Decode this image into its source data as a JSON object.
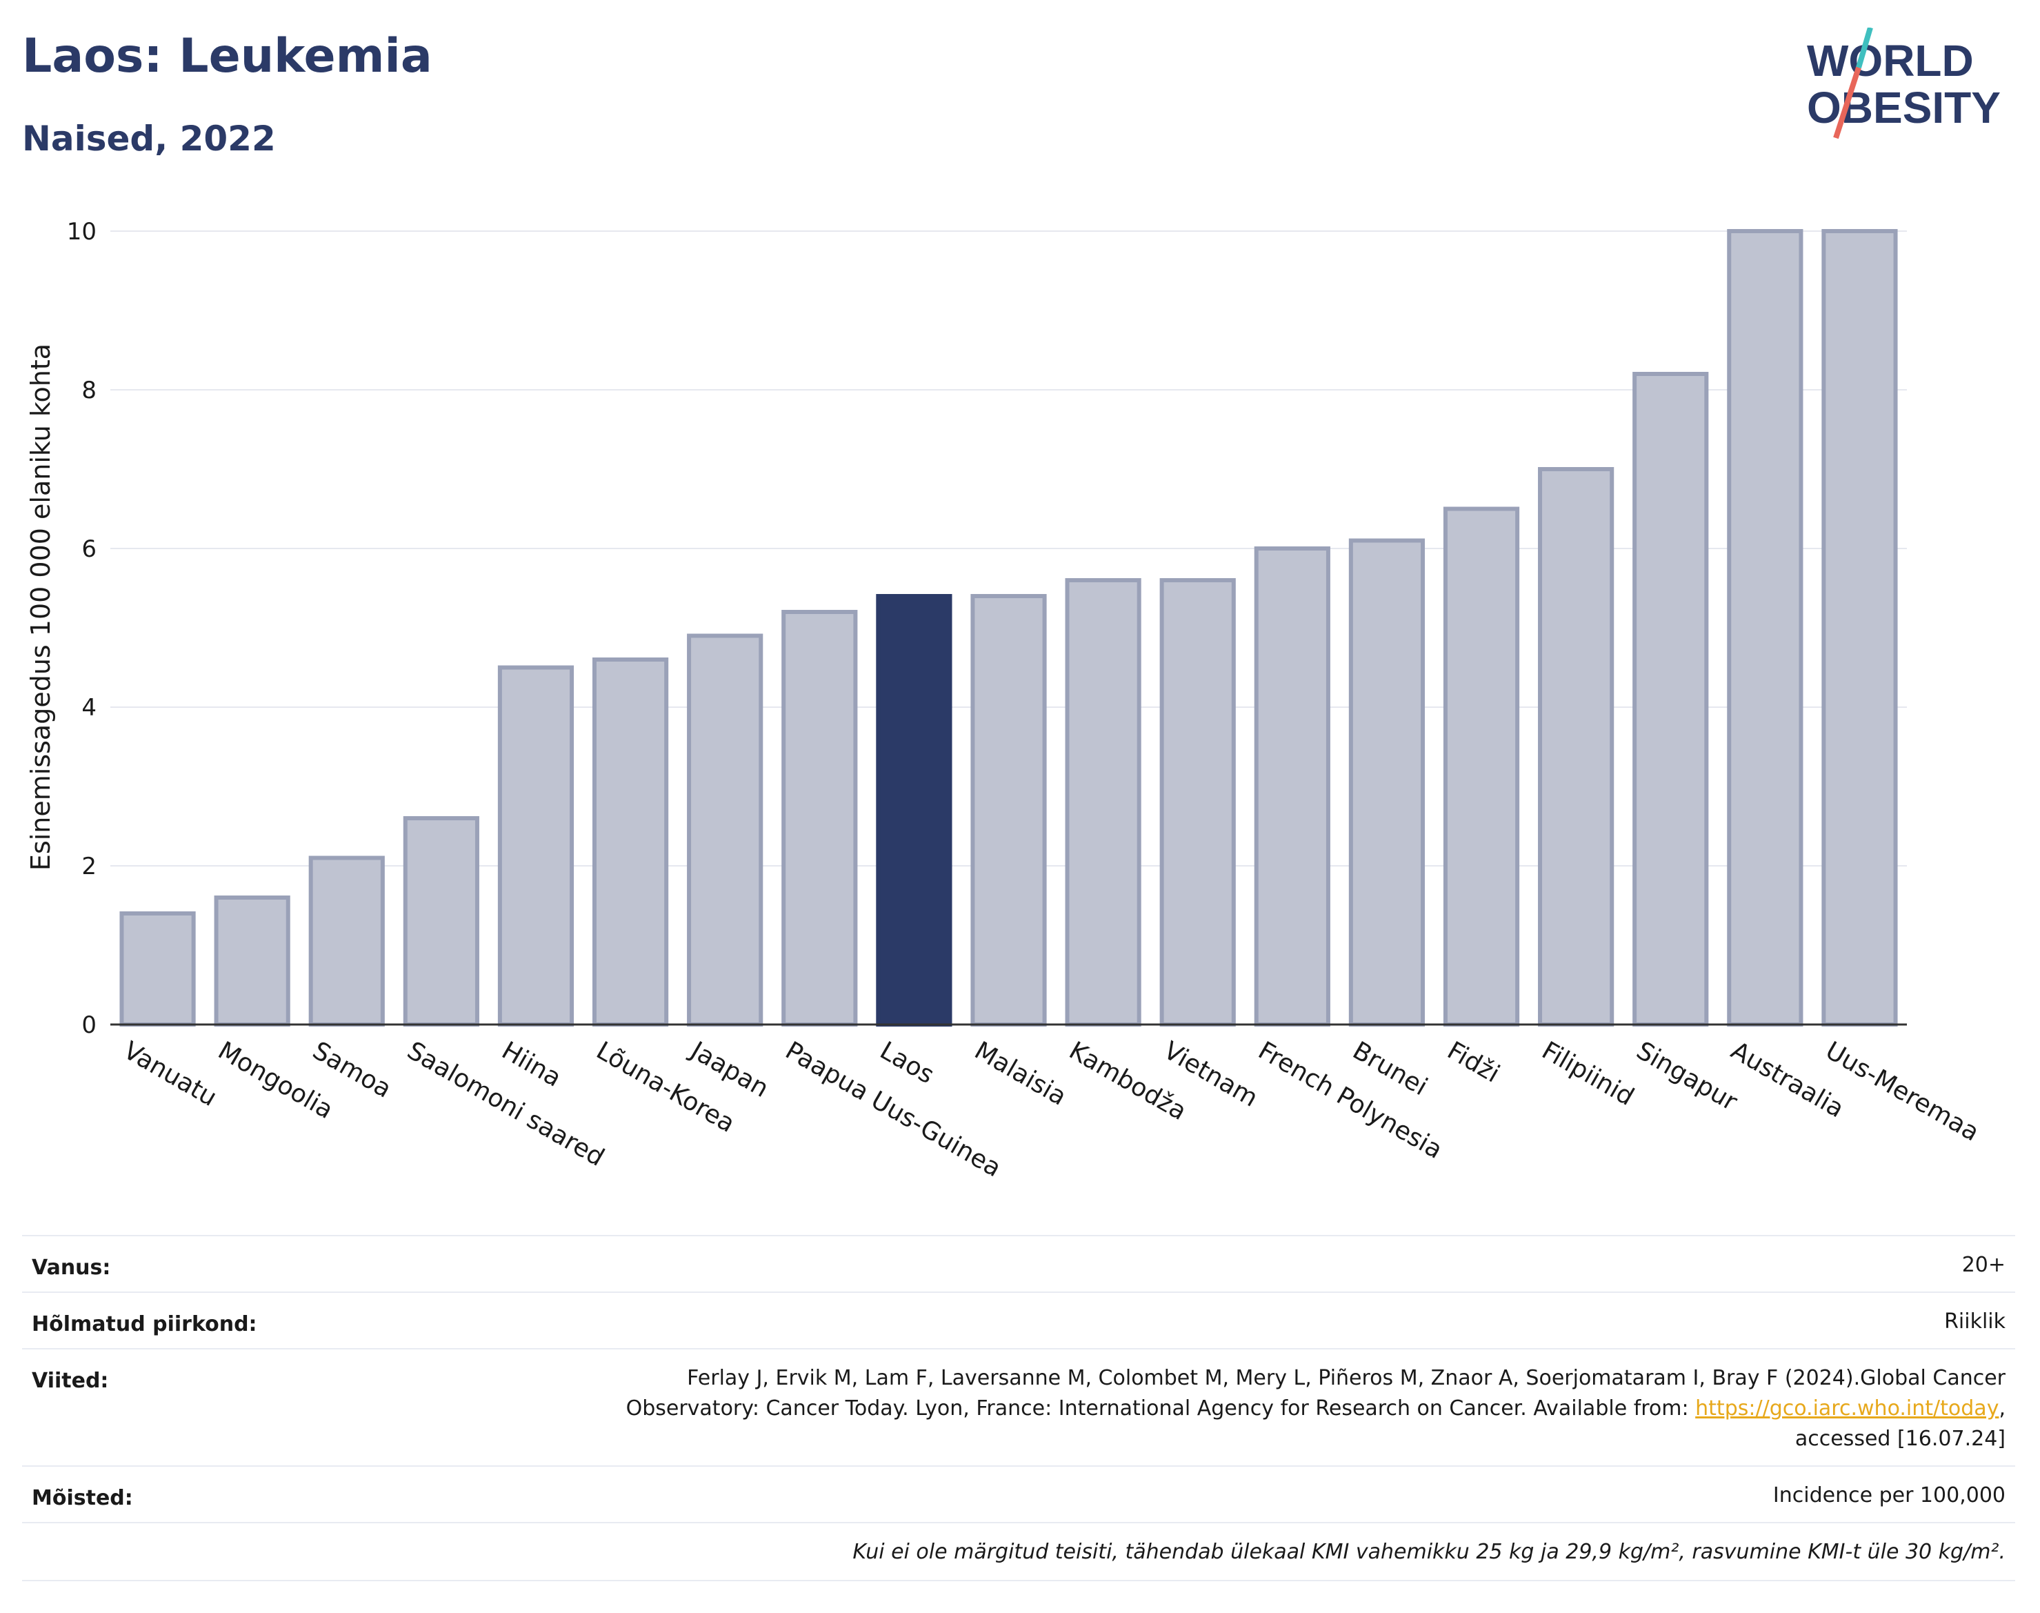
{
  "header": {
    "title": "Laos: Leukemia",
    "subtitle": "Naised, 2022",
    "logo_line1": "WORLD",
    "logo_line2": "OBESITY"
  },
  "colors": {
    "highlight": "#2b3a67",
    "bar": "#bfc3d1",
    "bar_edge": "#9aa1b8",
    "title": "#2b3a67",
    "logo_teal": "#3fbfbf",
    "logo_red": "#e8665a",
    "link": "#e7a81b"
  },
  "chart_data": {
    "type": "bar",
    "title": "Laos: Leukemia",
    "subtitle": "Naised, 2022",
    "ylabel": "Esinemissagedus 100 000 elaniku kohta",
    "xlabel": "",
    "ylim": [
      0,
      10
    ],
    "yticks": [
      0,
      2,
      4,
      6,
      8,
      10
    ],
    "grid": true,
    "highlight": "Laos",
    "categories": [
      "Vanuatu",
      "Mongoolia",
      "Samoa",
      "Saalomoni saared",
      "Hiina",
      "Lõuna-Korea",
      "Jaapan",
      "Paapua Uus-Guinea",
      "Laos",
      "Malaisia",
      "Kambodža",
      "Vietnam",
      "French Polynesia",
      "Brunei",
      "Fidži",
      "Filipiinid",
      "Singapur",
      "Austraalia",
      "Uus-Meremaa"
    ],
    "values": [
      1.4,
      1.6,
      2.1,
      2.6,
      4.5,
      4.6,
      4.9,
      5.2,
      5.4,
      5.4,
      5.6,
      5.6,
      6.0,
      6.1,
      6.5,
      7.0,
      8.2,
      10.0,
      10.0
    ]
  },
  "meta": {
    "age_label": "Vanus:",
    "age_value": "20+",
    "coverage_label": "Hõlmatud piirkond:",
    "coverage_value": "Riiklik",
    "refs_label": "Viited:",
    "refs_line1": "Ferlay J, Ervik M, Lam F, Laversanne M, Colombet M, Mery L, Piñeros M, Znaor A, Soerjomataram I, Bray F (2024).Global Cancer",
    "refs_line2_pre": "Observatory: Cancer Today. Lyon, France: International Agency for Research on Cancer. Available from: ",
    "refs_link": "https://gco.iarc.who.int/today",
    "refs_line2_post": ",",
    "refs_line3": "accessed [16.07.24]",
    "defs_label": "Mõisted:",
    "defs_value": "Incidence per 100,000",
    "footnote": "Kui ei ole märgitud teisiti, tähendab ülekaal KMI vahemikku 25 kg ja 29,9 kg/m², rasvumine KMI-t üle 30 kg/m²."
  }
}
